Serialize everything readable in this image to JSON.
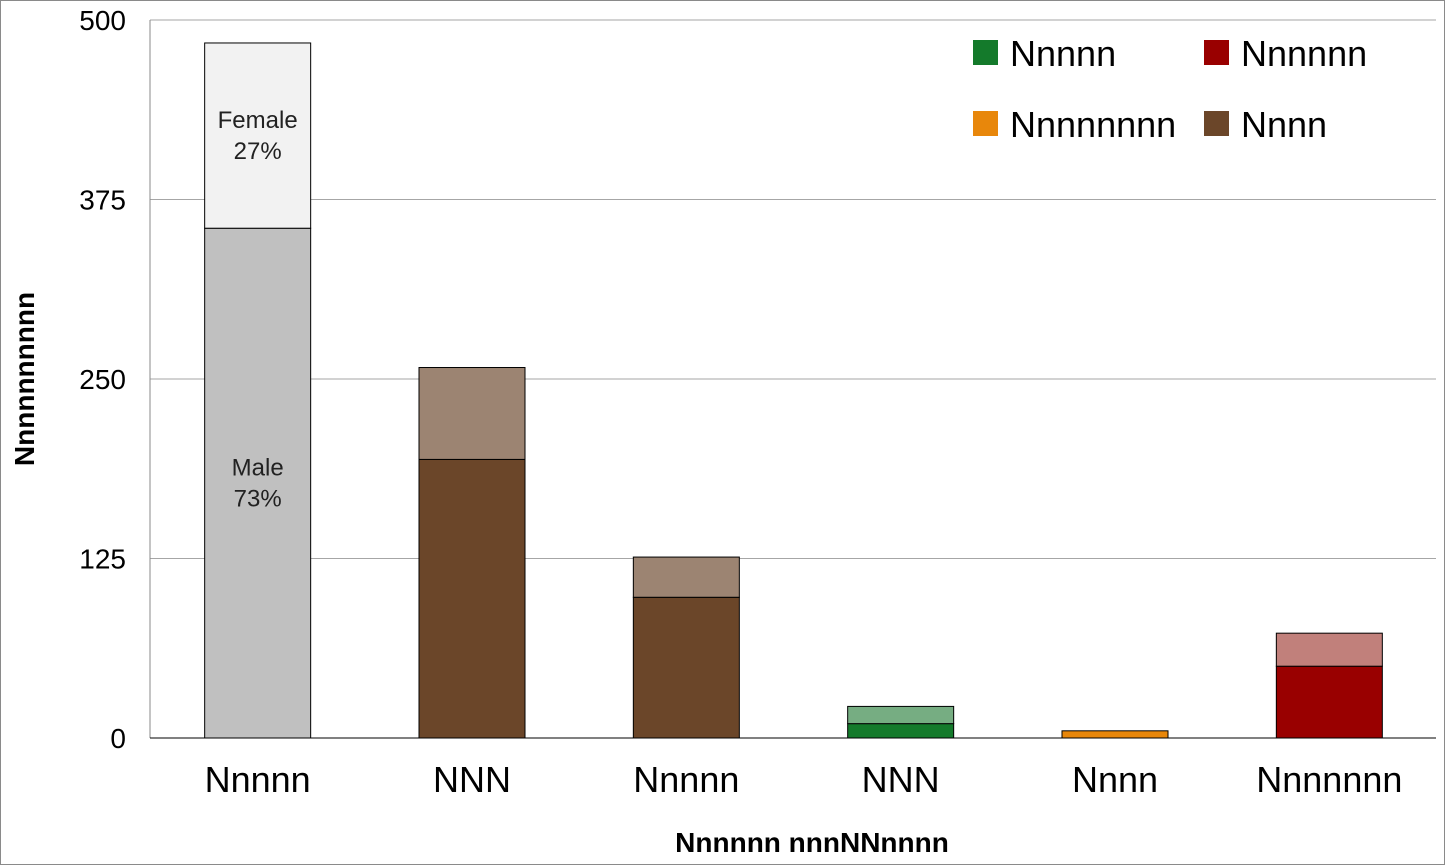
{
  "chart_data": {
    "type": "bar",
    "stacked": true,
    "title": "",
    "xlabel": "Nnnnnn nnnNNnnnn",
    "ylabel": "Nnnnnnnnnn",
    "ylim": [
      0,
      500
    ],
    "yticks": [
      0,
      125,
      250,
      375,
      500
    ],
    "grid": true,
    "legend_position": "top-right",
    "categories": [
      "Nnnnn",
      "NNN",
      "Nnnnn",
      "NNN",
      "Nnnn",
      "Nnnnnnn"
    ],
    "series": [
      {
        "values": [
          355,
          194,
          98,
          10,
          5,
          50
        ]
      },
      {
        "values": [
          129,
          64,
          28,
          12,
          0,
          23
        ]
      }
    ],
    "bar_colors": [
      {
        "base": "#c0c0c0",
        "top": "#f2f2f2"
      },
      {
        "base": "#6b4629",
        "top": "#9c8472"
      },
      {
        "base": "#6b4629",
        "top": "#9c8472"
      },
      {
        "base": "#147a2b",
        "top": "#76ad82"
      },
      {
        "base": "#e8870b",
        "top": "#e8870b"
      },
      {
        "base": "#990000",
        "top": "#c1807b"
      }
    ],
    "annotations": [
      {
        "category_index": 0,
        "segment": "top",
        "lines": [
          "Female",
          "27%"
        ]
      },
      {
        "category_index": 0,
        "segment": "base",
        "lines": [
          "Male",
          "73%"
        ]
      }
    ],
    "legend": [
      {
        "label": "Nnnnn",
        "color": "#147a2b"
      },
      {
        "label": "Nnnnnn",
        "color": "#990000"
      },
      {
        "label": "Nnnnnnnn",
        "color": "#e8870b"
      },
      {
        "label": "Nnnn",
        "color": "#6b4629"
      }
    ]
  }
}
